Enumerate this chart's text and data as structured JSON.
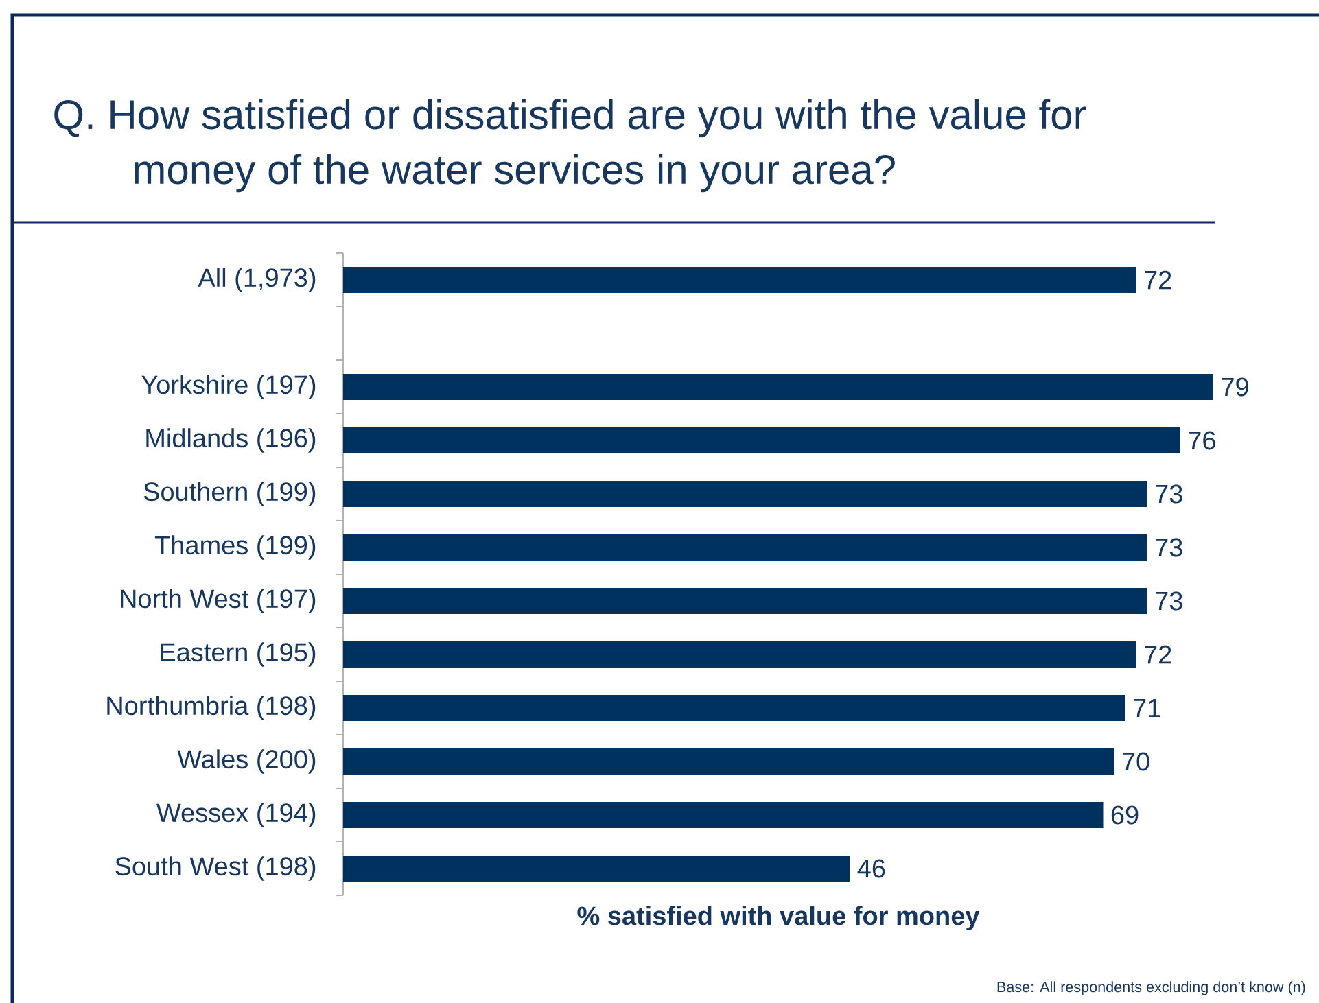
{
  "chart_data": {
    "type": "bar",
    "orientation": "horizontal",
    "title": "Q. How satisfied or dissatisfied are you with the value for money of the water services in your area?",
    "categories": [
      "All (1,973)",
      null,
      "Yorkshire (197)",
      "Midlands (196)",
      "Southern (199)",
      "Thames (199)",
      "North West (197)",
      "Eastern (195)",
      "Northumbria (198)",
      "Wales (200)",
      "Wessex (194)",
      "South West (198)"
    ],
    "values": [
      72,
      null,
      79,
      76,
      73,
      73,
      73,
      72,
      71,
      70,
      69,
      46
    ],
    "color": "#00325f",
    "data_labels": true,
    "xlabel": "% satisfied with value for money",
    "annotations": [
      "Base: All respondents excluding don’t know (n)"
    ]
  }
}
